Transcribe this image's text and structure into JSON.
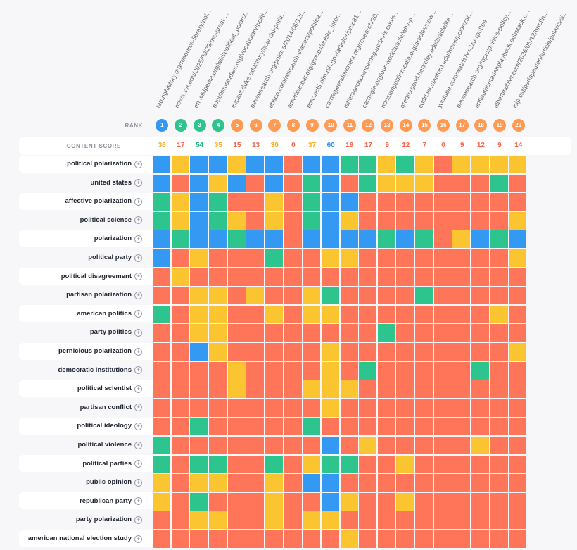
{
  "colors": {
    "blue": "#3399f3",
    "green": "#2dc48d",
    "yellow": "#fbc531",
    "red": "#fe7559",
    "orange_badge": "#ff9a52",
    "score_yellow": "#f6ad26",
    "score_green": "#21b47c",
    "score_blue": "#2d8ff0",
    "score_red": "#f6624c"
  },
  "headers": {
    "rank": "RANK",
    "content_score": "CONTENT SCORE"
  },
  "urls": [
    "fau.nghistory.org/resource-library/pol...",
    "news.syr.edu/2025/09/23/the-great-...",
    "en.wikipedia.org/wiki/political_polariz...",
    "populismstudies.org/vocabulary/politi...",
    "impact.duke.edu/story/how-did-politi...",
    "pewresearch.org/politics/2014/06/12/...",
    "ebsco.com/research-starters/politica...",
    "americanbar.org/groups/public_inter...",
    "pmc.ncbi.nlm.nih.gov/articles/pmc81...",
    "carnegieendowment.org/research/20...",
    "lettersandsciencemag.ucdavis.edu/s...",
    "carnegie.org/our-work/article/why-p...",
    "houstonpublicmedia.org/articles/new...",
    "greatergood.berkeley.edu/article/ite...",
    "cddrl.fsi.stanford.edu/news/polarizat...",
    "youtube.com/watch?v=2zu-rpo8ee",
    "pewresearch.org/topic/politics-policy...",
    "antiauthoritarianplaybook.substack.c...",
    "albertmohler.com/2026/05/12/briefin...",
    "icip.cat/perlapau/en/article/polarizati..."
  ],
  "ranks": [
    "1",
    "2",
    "3",
    "4",
    "5",
    "6",
    "7",
    "8",
    "9",
    "10",
    "11",
    "12",
    "13",
    "14",
    "15",
    "16",
    "17",
    "18",
    "19",
    "20"
  ],
  "rank_colors": [
    "blue",
    "green",
    "green",
    "green",
    "orange_badge",
    "orange_badge",
    "orange_badge",
    "orange_badge",
    "orange_badge",
    "orange_badge",
    "orange_badge",
    "orange_badge",
    "orange_badge",
    "orange_badge",
    "orange_badge",
    "orange_badge",
    "orange_badge",
    "orange_badge",
    "orange_badge",
    "orange_badge"
  ],
  "scores": [
    "36",
    "17",
    "54",
    "35",
    "15",
    "13",
    "30",
    "0",
    "37",
    "60",
    "19",
    "17",
    "9",
    "12",
    "7",
    "0",
    "9",
    "12",
    "9",
    "14"
  ],
  "score_colors": [
    "score_yellow",
    "score_red",
    "score_green",
    "score_yellow",
    "score_red",
    "score_red",
    "score_yellow",
    "score_red",
    "score_yellow",
    "score_blue",
    "score_red",
    "score_red",
    "score_red",
    "score_red",
    "score_red",
    "score_red",
    "score_red",
    "score_red",
    "score_red",
    "score_red"
  ],
  "keywords": [
    {
      "label": "political polarization",
      "cells": "BYBBYBBRBBGGYGYRYYYY"
    },
    {
      "label": "united states",
      "cells": "BRBYBRBRGBRGYYYRRRGR"
    },
    {
      "label": "affective polarization",
      "cells": "GYBGRRYRGBBRRRRRRRRR"
    },
    {
      "label": "political science",
      "cells": "GYBGYRYRGBYRRRRRRRRY"
    },
    {
      "label": "polarization",
      "cells": "BGBBGBBRBBBBGBGRYBGB"
    },
    {
      "label": "political party",
      "cells": "BRYRRRGRRYYRRRRRRRRY"
    },
    {
      "label": "political disagreement",
      "cells": "RYRRRRRRRRRRRRRRRRRR"
    },
    {
      "label": "partisan polarization",
      "cells": "RRYYRYRRYGRRRRGRRRRR"
    },
    {
      "label": "american politics",
      "cells": "GRYYRRYRYYRRRRRRRRYR"
    },
    {
      "label": "party politics",
      "cells": "RRYYRRRRRRRRGRRRRRRR"
    },
    {
      "label": "pernicious polarization",
      "cells": "RRBYRRRRRYRRRRRRRRRY"
    },
    {
      "label": "democratic institutions",
      "cells": "RRRRYRRRRYRGRRRRRGRR"
    },
    {
      "label": "political scientist",
      "cells": "RRRRYRRRYYYRRRRRRRRR"
    },
    {
      "label": "partisan conflict",
      "cells": "RRRRRRRRRYRRRRRRRRRR"
    },
    {
      "label": "political ideology",
      "cells": "RRGRRRRRGRRRRRRRRRRR"
    },
    {
      "label": "political violence",
      "cells": "GRRRRRRRRBRYRRRRRYRR"
    },
    {
      "label": "political parties",
      "cells": "GRGGRRGRYGGRRYRRRRRR"
    },
    {
      "label": "public opinion",
      "cells": "YRYYRRYRBBRRRRRRRRRR"
    },
    {
      "label": "republican party",
      "cells": "YRGRRRYRRBYRRYRRRRRR"
    },
    {
      "label": "party polarization",
      "cells": "RRYYRRYRYYRRRRRRRRRR"
    },
    {
      "label": "american national election study",
      "cells": "RRRRRRRRRRYRRRRRRRRR"
    }
  ]
}
